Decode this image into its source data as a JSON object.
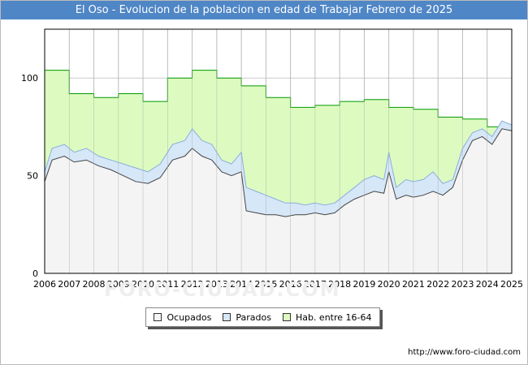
{
  "colors": {
    "title_bg": "#4f86c6",
    "ocupados_fill": "#f4f4f4",
    "parados_fill": "#d6e7f8",
    "hab_fill": "#ddfbc0",
    "hab_line": "#009900",
    "parados_line": "#8aaedc",
    "ocupados_line": "#444444"
  },
  "footer": {
    "url": "http://www.foro-ciudad.com"
  },
  "watermark": "FORO-CIUDAD.COM",
  "chart_data": {
    "type": "area",
    "title": "El Oso - Evolucion de la poblacion en edad de Trabajar Febrero de 2025",
    "xlabel": "",
    "ylabel": "",
    "xlim": [
      2006,
      2025
    ],
    "ylim": [
      0,
      125
    ],
    "yticks": [
      0,
      50,
      100
    ],
    "xticks": [
      2006,
      2007,
      2008,
      2009,
      2010,
      2011,
      2012,
      2013,
      2014,
      2015,
      2016,
      2017,
      2018,
      2019,
      2020,
      2021,
      2022,
      2023,
      2024,
      2025
    ],
    "grid": true,
    "legend_position": "bottom",
    "series": [
      {
        "name": "Hab. entre 16-64",
        "kind": "step",
        "x": [
          2006,
          2007,
          2008,
          2009,
          2010,
          2011,
          2012,
          2013,
          2014,
          2015,
          2016,
          2017,
          2018,
          2019,
          2020,
          2021,
          2022,
          2023,
          2024,
          2025
        ],
        "values": [
          104,
          92,
          90,
          92,
          88,
          100,
          104,
          100,
          96,
          90,
          85,
          86,
          88,
          89,
          85,
          84,
          80,
          79,
          75,
          75
        ]
      },
      {
        "name": "Parados",
        "kind": "line",
        "x": [
          2006,
          2006.3,
          2006.8,
          2007.2,
          2007.7,
          2008.2,
          2008.7,
          2009.2,
          2009.7,
          2010.2,
          2010.7,
          2011.2,
          2011.7,
          2012.0,
          2012.4,
          2012.8,
          2013.2,
          2013.6,
          2014.0,
          2014.2,
          2014.6,
          2015.0,
          2015.4,
          2015.8,
          2016.2,
          2016.6,
          2017.0,
          2017.4,
          2017.8,
          2018.2,
          2018.6,
          2019.0,
          2019.4,
          2019.8,
          2020.0,
          2020.3,
          2020.7,
          2021.0,
          2021.4,
          2021.8,
          2022.2,
          2022.6,
          2023.0,
          2023.4,
          2023.8,
          2024.2,
          2024.6,
          2025.0
        ],
        "values": [
          52,
          64,
          66,
          62,
          64,
          60,
          58,
          56,
          54,
          52,
          56,
          66,
          68,
          74,
          68,
          66,
          58,
          56,
          62,
          44,
          42,
          40,
          38,
          36,
          36,
          35,
          36,
          35,
          36,
          40,
          44,
          48,
          50,
          48,
          62,
          44,
          48,
          47,
          48,
          52,
          46,
          48,
          64,
          72,
          74,
          70,
          78,
          76
        ]
      },
      {
        "name": "Ocupados",
        "kind": "line",
        "x": [
          2006,
          2006.3,
          2006.8,
          2007.2,
          2007.7,
          2008.2,
          2008.7,
          2009.2,
          2009.7,
          2010.2,
          2010.7,
          2011.2,
          2011.7,
          2012.0,
          2012.4,
          2012.8,
          2013.2,
          2013.6,
          2014.0,
          2014.2,
          2014.6,
          2015.0,
          2015.4,
          2015.8,
          2016.2,
          2016.6,
          2017.0,
          2017.4,
          2017.8,
          2018.2,
          2018.6,
          2019.0,
          2019.4,
          2019.8,
          2020.0,
          2020.3,
          2020.7,
          2021.0,
          2021.4,
          2021.8,
          2022.2,
          2022.6,
          2023.0,
          2023.4,
          2023.8,
          2024.2,
          2024.6,
          2025.0
        ],
        "values": [
          47,
          58,
          60,
          57,
          58,
          55,
          53,
          50,
          47,
          46,
          49,
          58,
          60,
          64,
          60,
          58,
          52,
          50,
          52,
          32,
          31,
          30,
          30,
          29,
          30,
          30,
          31,
          30,
          31,
          35,
          38,
          40,
          42,
          41,
          52,
          38,
          40,
          39,
          40,
          42,
          40,
          44,
          58,
          68,
          70,
          66,
          74,
          73
        ]
      }
    ],
    "legend": [
      "Ocupados",
      "Parados",
      "Hab. entre 16-64"
    ]
  }
}
